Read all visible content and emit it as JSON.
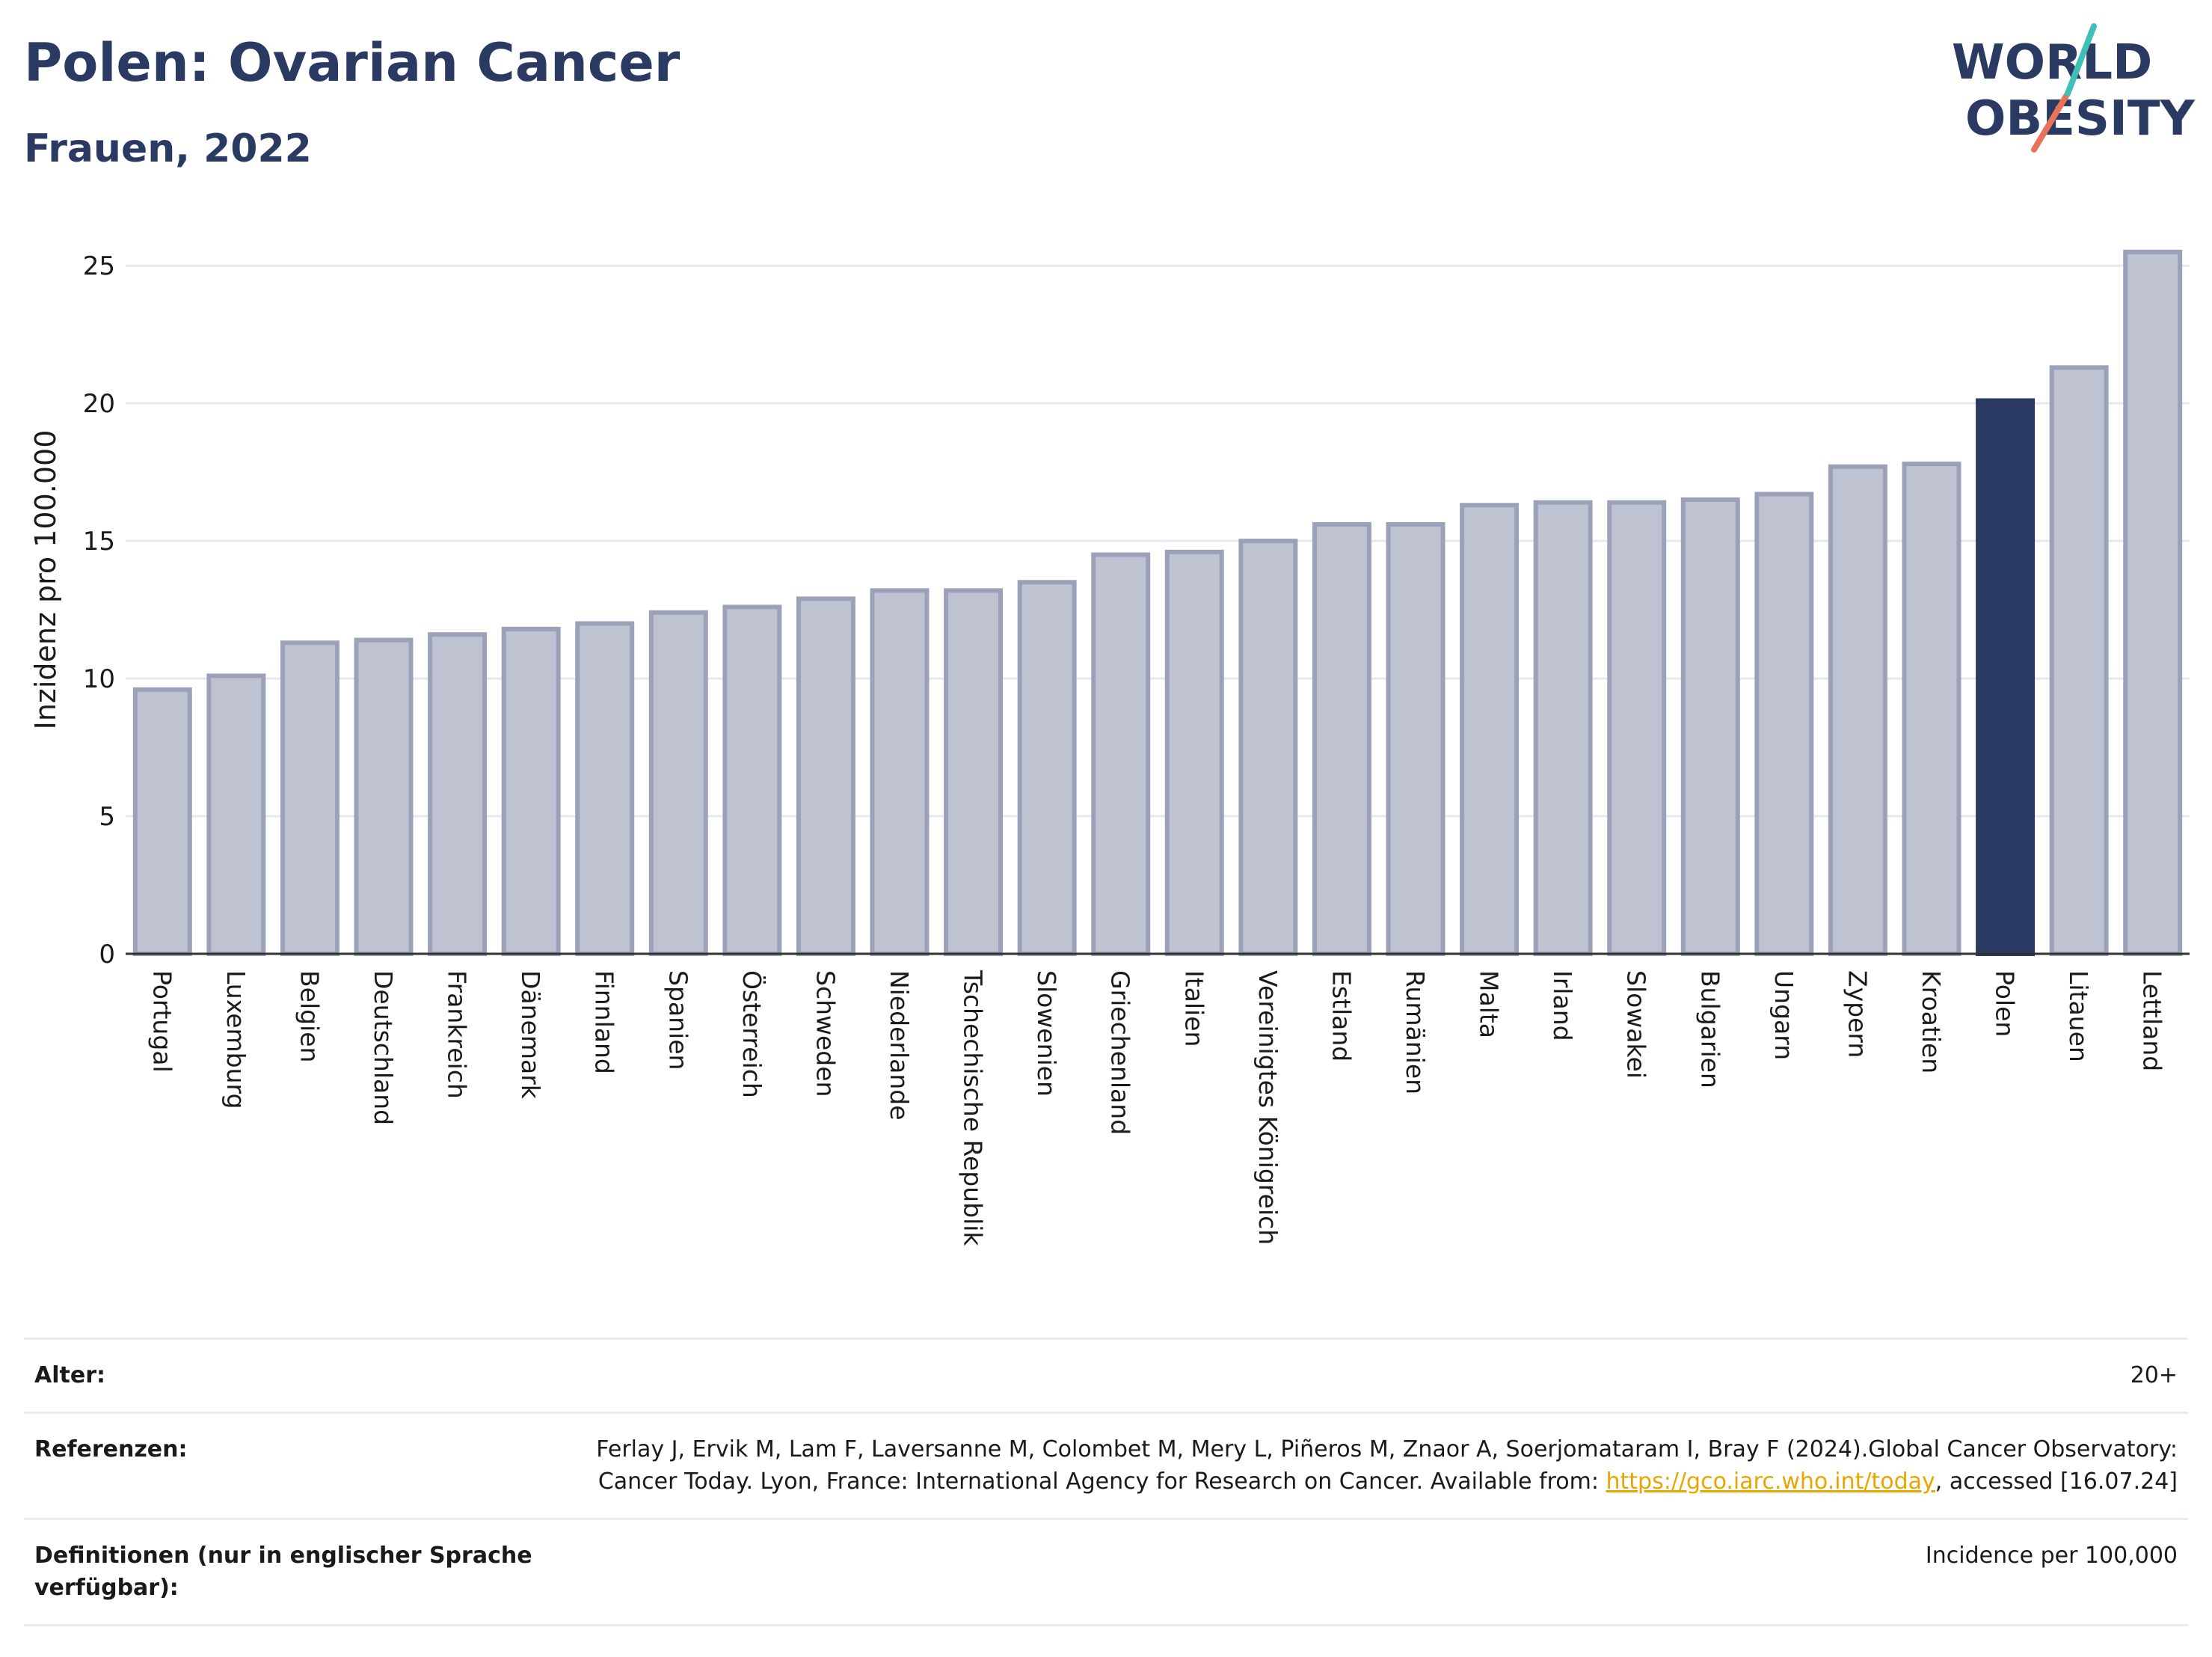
{
  "header": {
    "title": "Polen: Ovarian Cancer",
    "subtitle": "Frauen, 2022"
  },
  "logo": {
    "line1": "WORLD",
    "line2": "OBESITY"
  },
  "chart_data": {
    "type": "bar",
    "title": "Polen: Ovarian Cancer",
    "subtitle": "Frauen, 2022",
    "ylabel": "Inzidenz pro 100.000",
    "xlabel": "",
    "ylim": [
      0,
      26.5
    ],
    "yticks": [
      0,
      5,
      10,
      15,
      20,
      25
    ],
    "grid": true,
    "highlight": "Polen",
    "colors": {
      "default_fill": "#bfc3d1",
      "default_stroke": "#9aa1b8",
      "highlight": "#2b3a63"
    },
    "categories": [
      "Portugal",
      "Luxemburg",
      "Belgien",
      "Deutschland",
      "Frankreich",
      "Dänemark",
      "Finnland",
      "Spanien",
      "Österreich",
      "Schweden",
      "Niederlande",
      "Tschechische Republik",
      "Slowenien",
      "Griechenland",
      "Italien",
      "Vereinigtes Königreich",
      "Estland",
      "Rumänien",
      "Malta",
      "Irland",
      "Slowakei",
      "Bulgarien",
      "Ungarn",
      "Zypern",
      "Kroatien",
      "Polen",
      "Litauen",
      "Lettland"
    ],
    "values": [
      9.6,
      10.1,
      11.3,
      11.4,
      11.6,
      11.8,
      12.0,
      12.4,
      12.6,
      12.9,
      13.2,
      13.2,
      13.5,
      14.5,
      14.6,
      15.0,
      15.6,
      15.6,
      16.3,
      16.4,
      16.4,
      16.5,
      16.7,
      17.7,
      17.8,
      20.1,
      21.3,
      25.5
    ]
  },
  "meta": [
    {
      "label": "Alter:",
      "value": "20+"
    },
    {
      "label": "Referenzen:",
      "value_before": "Ferlay J, Ervik M, Lam F, Laversanne M, Colombet M, Mery L, Piñeros M, Znaor A, Soerjomataram I, Bray F (2024).Global Cancer Observatory: Cancer Today. Lyon, France: International Agency for Research on Cancer. Available from: ",
      "link": "https://gco.iarc.who.int/today",
      "value_after": ", accessed [16.07.24]"
    },
    {
      "label": "Definitionen (nur in englischer Sprache verfügbar):",
      "value": "Incidence per 100,000"
    }
  ]
}
